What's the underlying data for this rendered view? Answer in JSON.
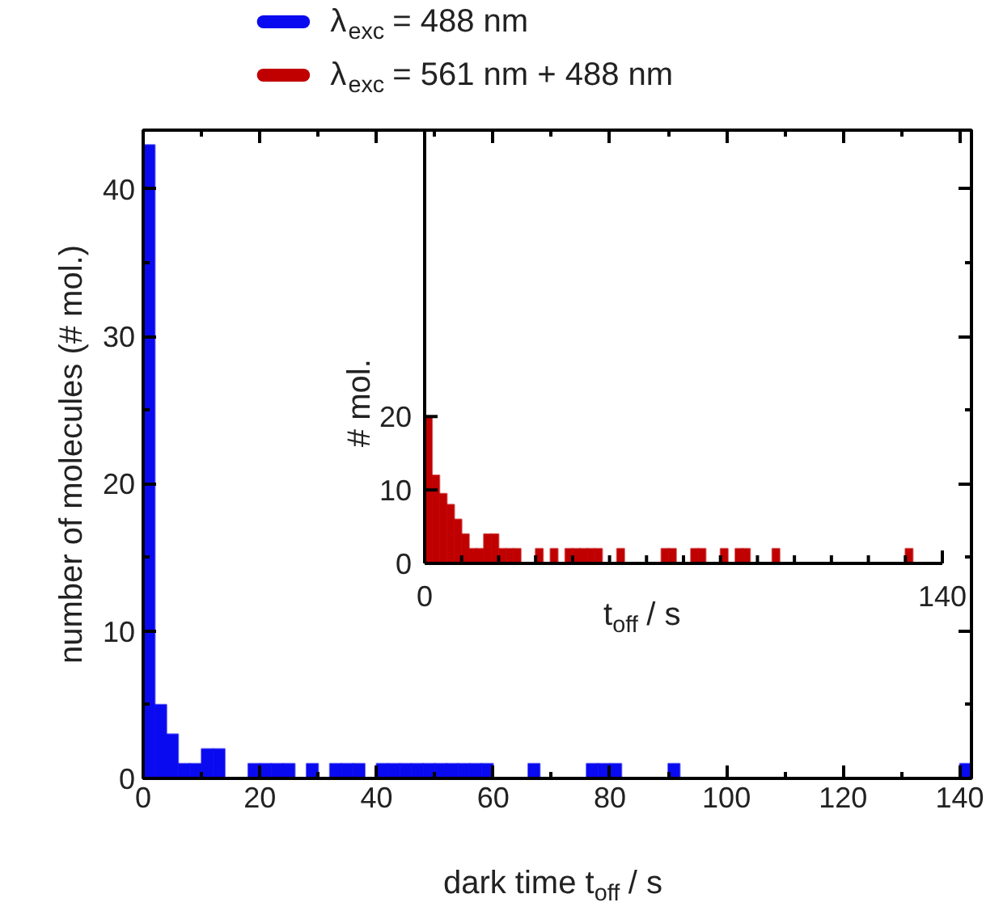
{
  "chart_data": [
    {
      "type": "histogram",
      "xlabel": "dark time t$_{off}$ / s",
      "ylabel": "number of molecules (# mol.)",
      "legend": "top",
      "bins": [
        0,
        2,
        4,
        6,
        8,
        10,
        12,
        14,
        16,
        18,
        20,
        22,
        24,
        26,
        28,
        30,
        32,
        34,
        36,
        38,
        40,
        42,
        44,
        46,
        48,
        50,
        52,
        54,
        56,
        58,
        60,
        62,
        64,
        66,
        68,
        70,
        72,
        74,
        76,
        78,
        80,
        82,
        84,
        86,
        88,
        90,
        92,
        94,
        96,
        98,
        100,
        102,
        104,
        106,
        108,
        110,
        112,
        114,
        116,
        118,
        120,
        122,
        124,
        126,
        128,
        130,
        132,
        134,
        136,
        138,
        140,
        142
      ],
      "series": [
        {
          "name": "λ$_{exc}$= 488 nm",
          "color": "#0a0af0",
          "values": [
            43,
            5,
            3,
            1,
            1,
            2,
            2,
            0,
            0,
            1,
            1,
            1,
            1,
            0,
            1,
            0,
            1,
            1,
            1,
            0,
            1,
            1,
            1,
            1,
            1,
            1,
            1,
            1,
            1,
            1,
            0,
            0,
            0,
            1,
            0,
            0,
            0,
            0,
            1,
            1,
            1,
            0,
            0,
            0,
            0,
            1,
            0,
            0,
            0,
            0,
            0,
            0,
            0,
            0,
            0,
            0,
            0,
            0,
            0,
            0,
            0,
            0,
            0,
            0,
            0,
            0,
            0,
            0,
            0,
            0,
            1
          ]
        }
      ],
      "xlim": [
        0,
        142
      ],
      "ylim": [
        0,
        44
      ],
      "xticks": [
        0,
        {
          "value": 10,
          "label": null
        },
        20,
        {
          "value": 30,
          "label": null
        },
        40,
        {
          "value": 50,
          "label": null
        },
        60,
        {
          "value": 70,
          "label": null
        },
        80,
        {
          "value": 90,
          "label": null
        },
        100,
        {
          "value": 110,
          "label": null
        },
        120,
        {
          "value": 130,
          "label": null
        },
        140
      ],
      "yticks": [
        0,
        {
          "value": 5,
          "label": null
        },
        10,
        {
          "value": 15,
          "label": null
        },
        20,
        {
          "value": 25,
          "label": null
        },
        30,
        {
          "value": 35,
          "label": null
        },
        40
      ]
    },
    {
      "type": "histogram",
      "xlabel": "t$_{off}$ / s",
      "ylabel": "# mol.",
      "legend": "top",
      "bins": [
        0,
        2,
        4,
        6,
        8,
        10,
        12,
        14,
        16,
        18,
        20,
        22,
        24,
        26,
        28,
        30,
        32,
        34,
        36,
        38,
        40,
        42,
        44,
        46,
        48,
        50,
        52,
        54,
        56,
        58,
        60,
        62,
        64,
        66,
        68,
        70,
        72,
        74,
        76,
        78,
        80,
        82,
        84,
        86,
        88,
        90,
        92,
        94,
        96,
        98,
        100,
        102,
        104,
        106,
        108,
        110,
        112,
        114,
        116,
        118,
        120,
        122,
        124,
        126,
        128,
        130,
        132,
        134,
        136,
        138,
        140
      ],
      "series": [
        {
          "name": "λ$_{exc}$= 561 nm + 488 nm",
          "color": "#c00000",
          "values": [
            20,
            12,
            9.5,
            8,
            6,
            4,
            2,
            2,
            4,
            4,
            2,
            2,
            2,
            0,
            0,
            2,
            0,
            2,
            0,
            2,
            2,
            2,
            2,
            2,
            0,
            0,
            2,
            0,
            0,
            0,
            0,
            0,
            2,
            2,
            0,
            0,
            2,
            2,
            0,
            0,
            2,
            0,
            2,
            2,
            0,
            0,
            0,
            2,
            0,
            0,
            0,
            0,
            0,
            0,
            0,
            0,
            0,
            0,
            0,
            0,
            0,
            0,
            0,
            0,
            0,
            2,
            0,
            0,
            0,
            0
          ]
        }
      ],
      "xlim": [
        0,
        140
      ],
      "ylim": [
        0,
        59
      ],
      "xticks": [
        0,
        {
          "value": 10,
          "label": null
        },
        {
          "value": 20,
          "label": null
        },
        {
          "value": 30,
          "label": null
        },
        {
          "value": 40,
          "label": null
        },
        {
          "value": 50,
          "label": null
        },
        {
          "value": 60,
          "label": null
        },
        {
          "value": 70,
          "label": null
        },
        {
          "value": 80,
          "label": null
        },
        {
          "value": 90,
          "label": null
        },
        {
          "value": 100,
          "label": null
        },
        {
          "value": 110,
          "label": null
        },
        {
          "value": 120,
          "label": null
        },
        {
          "value": 130,
          "label": null
        },
        140
      ],
      "yticks": [
        0,
        10,
        20
      ]
    }
  ]
}
